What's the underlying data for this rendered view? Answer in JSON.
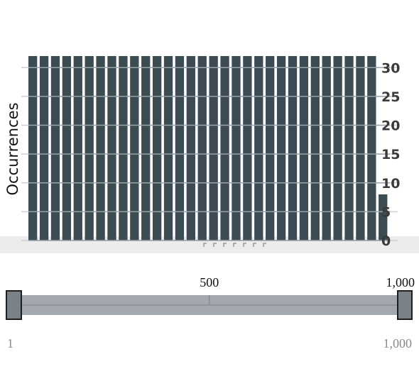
{
  "chart_data": {
    "type": "bar",
    "ylabel": "Occurrences",
    "ylim": [
      0,
      32
    ],
    "yticks": [
      "0",
      "5",
      "10",
      "15",
      "20",
      "25",
      "30"
    ],
    "values": [
      32,
      32,
      32,
      32,
      32,
      32,
      32,
      32,
      32,
      32,
      32,
      32,
      32,
      32,
      32,
      32,
      32,
      32,
      32,
      32,
      32,
      32,
      32,
      32,
      32,
      32,
      32,
      32,
      32,
      32,
      32,
      8
    ],
    "bar_color": "#3b4c55",
    "grid": true,
    "yaxis_position": "right"
  },
  "slider": {
    "range": [
      1,
      1000
    ],
    "selected": [
      1,
      1000
    ],
    "tick_labels": [
      {
        "value": 500,
        "label": "500"
      },
      {
        "value": 1000,
        "label": "1,000"
      }
    ],
    "min_label": "1",
    "max_label": "1,000"
  }
}
